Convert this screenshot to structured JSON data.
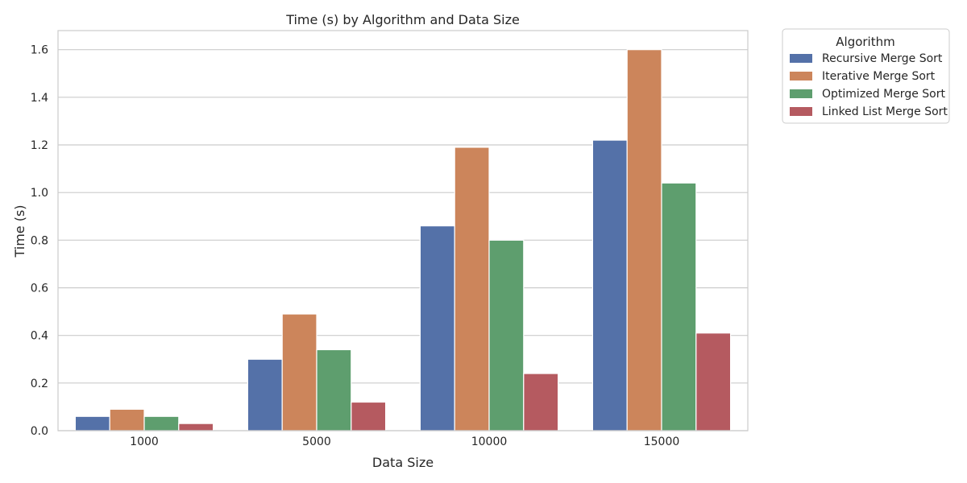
{
  "chart_data": {
    "type": "bar",
    "title": "Time (s) by Algorithm and Data Size",
    "xlabel": "Data Size",
    "ylabel": "Time (s)",
    "categories": [
      "1000",
      "5000",
      "10000",
      "15000"
    ],
    "ylim": [
      0,
      1.68
    ],
    "yticks": [
      "0.0",
      "0.2",
      "0.4",
      "0.6",
      "0.8",
      "1.0",
      "1.2",
      "1.4",
      "1.6"
    ],
    "grid": "horizontal",
    "legend": {
      "title": "Algorithm",
      "placement": "outside-top-right"
    },
    "series": [
      {
        "name": "Recursive Merge Sort",
        "color": "#5471a8",
        "values": [
          0.06,
          0.3,
          0.86,
          1.22
        ]
      },
      {
        "name": "Iterative Merge Sort",
        "color": "#cc855b",
        "values": [
          0.09,
          0.49,
          1.19,
          1.6
        ]
      },
      {
        "name": "Optimized Merge Sort",
        "color": "#5e9e6e",
        "values": [
          0.06,
          0.34,
          0.8,
          1.04
        ]
      },
      {
        "name": "Linked List Merge Sort",
        "color": "#b55a60",
        "values": [
          0.03,
          0.12,
          0.24,
          0.41
        ]
      }
    ]
  }
}
